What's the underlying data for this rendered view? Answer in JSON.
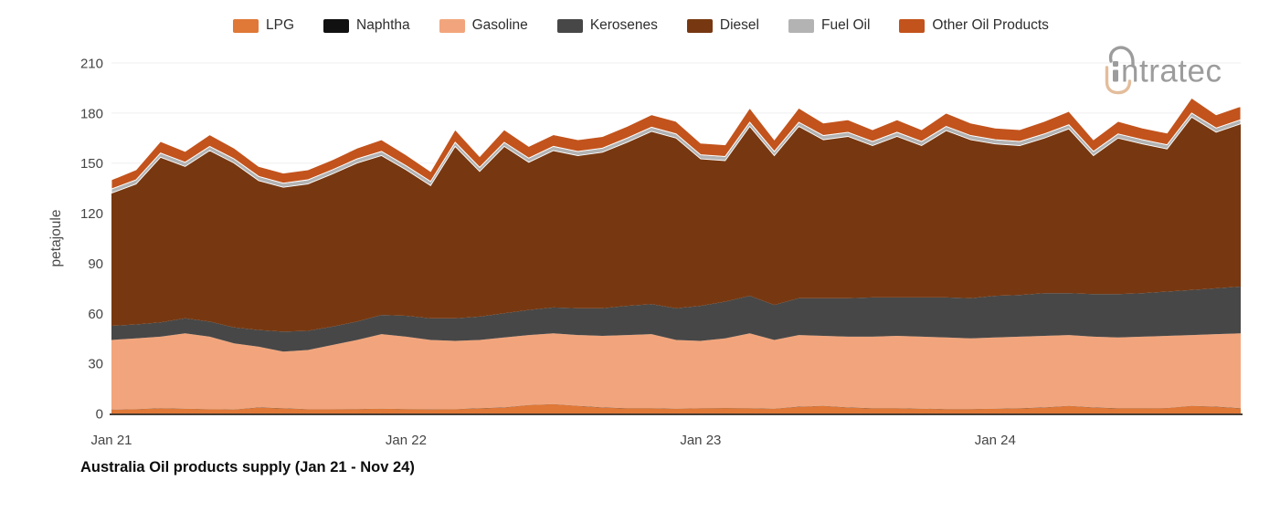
{
  "logo": {
    "brand": "intratec",
    "wordmark_letters": "ntratec",
    "gray": "#9c9c9c",
    "accent_tan": "#e3bd9c"
  },
  "styles": {
    "grid_color": "#efefef",
    "axis_line_color": "#30221a",
    "tick_color": "#454545",
    "background": "#ffffff"
  },
  "chart_data": {
    "type": "area",
    "stacked": true,
    "title": "Australia Oil products supply (Jan 21 - Nov 24)",
    "ylabel": "petajoule",
    "unit": "petajoule",
    "grid": true,
    "legend_position": "top",
    "ylim": [
      0,
      210
    ],
    "yticks": [
      0,
      30,
      60,
      90,
      120,
      150,
      180,
      210
    ],
    "xticks": [
      {
        "label": "Jan 21",
        "month_index": 0
      },
      {
        "label": "Jan 22",
        "month_index": 12
      },
      {
        "label": "Jan 23",
        "month_index": 24
      },
      {
        "label": "Jan 24",
        "month_index": 36
      }
    ],
    "categories": [
      "Jan 21",
      "Feb 21",
      "Mar 21",
      "Apr 21",
      "May 21",
      "Jun 21",
      "Jul 21",
      "Aug 21",
      "Sep 21",
      "Oct 21",
      "Nov 21",
      "Dec 21",
      "Jan 22",
      "Feb 22",
      "Mar 22",
      "Apr 22",
      "May 22",
      "Jun 22",
      "Jul 22",
      "Aug 22",
      "Sep 22",
      "Oct 22",
      "Nov 22",
      "Dec 22",
      "Jan 23",
      "Feb 23",
      "Mar 23",
      "Apr 23",
      "May 23",
      "Jun 23",
      "Jul 23",
      "Aug 23",
      "Sep 23",
      "Oct 23",
      "Nov 23",
      "Dec 23",
      "Jan 24",
      "Feb 24",
      "Mar 24",
      "Apr 24",
      "May 24",
      "Jun 24",
      "Jul 24",
      "Aug 24",
      "Sep 24",
      "Oct 24",
      "Nov 24"
    ],
    "series": [
      {
        "name": "LPG",
        "color": "#e07837",
        "white_edge": false,
        "values": [
          2.2,
          2.5,
          3,
          2.8,
          2.5,
          2.3,
          3.5,
          3,
          2.5,
          2.5,
          2.6,
          2.8,
          2.6,
          2.4,
          2.5,
          3,
          3.5,
          5,
          5.5,
          4.5,
          3.5,
          3,
          3,
          2.8,
          3,
          3.2,
          3,
          2.8,
          4,
          4.5,
          3.5,
          3,
          3,
          2.8,
          2.6,
          2.6,
          2.8,
          3,
          3.5,
          4.5,
          3.5,
          3,
          3,
          3.2,
          4.5,
          4,
          3
        ]
      },
      {
        "name": "Naphtha",
        "color": "#111111",
        "white_edge": false,
        "values": [
          0.1,
          0.1,
          0.1,
          0.1,
          0.1,
          0.1,
          0.1,
          0.1,
          0.1,
          0.1,
          0.1,
          0.1,
          0.1,
          0.1,
          0.1,
          0.1,
          0.1,
          0.1,
          0.1,
          0.1,
          0.1,
          0.1,
          0.1,
          0.1,
          0.1,
          0.1,
          0.1,
          0.1,
          0.1,
          0.1,
          0.1,
          0.1,
          0.1,
          0.1,
          0.1,
          0.1,
          0.1,
          0.1,
          0.1,
          0.1,
          0.1,
          0.1,
          0.1,
          0.1,
          0.1,
          0.1,
          0.1
        ]
      },
      {
        "name": "Gasoline",
        "color": "#f2a57c",
        "white_edge": false,
        "values": [
          41.7,
          42.4,
          42.9,
          45.1,
          43.4,
          39.6,
          36.4,
          33.9,
          35.4,
          38.4,
          41.3,
          44.6,
          43.3,
          41.5,
          40.9,
          40.9,
          41.9,
          41.9,
          42.4,
          42.4,
          42.9,
          43.9,
          44.4,
          41.1,
          40.4,
          41.7,
          44.9,
          41.1,
          42.9,
          41.9,
          42.4,
          42.9,
          43.4,
          43.1,
          42.8,
          42.3,
          42.6,
          42.9,
          42.9,
          42.4,
          42.4,
          42.4,
          42.9,
          43.2,
          42.4,
          43.4,
          44.9
        ]
      },
      {
        "name": "Kerosenes",
        "color": "#474747",
        "white_edge": false,
        "values": [
          8.5,
          8.3,
          8.5,
          9,
          9,
          9.5,
          10,
          12,
          11.5,
          11,
          11,
          11.5,
          12.5,
          13,
          13.5,
          14,
          14.5,
          15,
          15.5,
          16,
          16.5,
          17.5,
          18,
          19,
          21,
          22,
          22.5,
          21,
          22,
          22.5,
          23,
          23.5,
          23,
          23.5,
          24,
          24,
          25,
          25,
          25.5,
          25,
          25.5,
          26,
          26,
          26.5,
          27,
          27.5,
          28
        ]
      },
      {
        "name": "Diesel",
        "color": "#773811",
        "white_edge": false,
        "values": [
          79.5,
          84.2,
          99,
          91,
          102.5,
          98.5,
          89.5,
          86.5,
          88,
          91.5,
          95,
          95.5,
          87.5,
          79.5,
          103,
          87,
          100,
          88.5,
          94,
          91.5,
          93.5,
          98,
          103.5,
          102,
          88,
          84.5,
          101.5,
          89.5,
          103,
          95,
          97,
          91,
          96.5,
          91,
          100,
          95,
          91,
          89.5,
          93,
          98.5,
          83,
          93.5,
          89.5,
          85.5,
          103.5,
          93.5,
          97.5
        ]
      },
      {
        "name": "Fuel Oil",
        "color": "#b3b3b3",
        "white_edge": true,
        "values": [
          2.5,
          2.5,
          2.5,
          2.5,
          2.5,
          2.5,
          2.5,
          2.5,
          2.5,
          2.5,
          2.5,
          2.5,
          2.5,
          2.5,
          2.5,
          2.5,
          2.5,
          2.5,
          2.5,
          2.5,
          2.5,
          2.5,
          2.5,
          2.5,
          2.5,
          2.5,
          2.5,
          2.5,
          2.5,
          2.5,
          2.5,
          2.5,
          2.5,
          2.5,
          2.5,
          2.5,
          2.5,
          2.5,
          2.5,
          2.5,
          2.5,
          2.5,
          2.5,
          2.5,
          2.5,
          2.5,
          2.5
        ]
      },
      {
        "name": "Other Oil Products",
        "color": "#c2531c",
        "white_edge": true,
        "values": [
          5.5,
          6,
          7,
          6.5,
          7,
          6.5,
          6,
          6,
          6,
          6,
          6.5,
          7,
          6.5,
          6,
          7.5,
          6.5,
          7.5,
          7,
          7,
          7,
          7,
          7,
          7.5,
          7.5,
          7,
          7,
          8.5,
          7,
          8.5,
          7.5,
          7.5,
          7,
          7.5,
          7,
          8,
          7.5,
          7,
          7,
          7.5,
          8,
          7,
          7.5,
          7,
          7,
          9,
          8,
          8
        ]
      }
    ]
  }
}
